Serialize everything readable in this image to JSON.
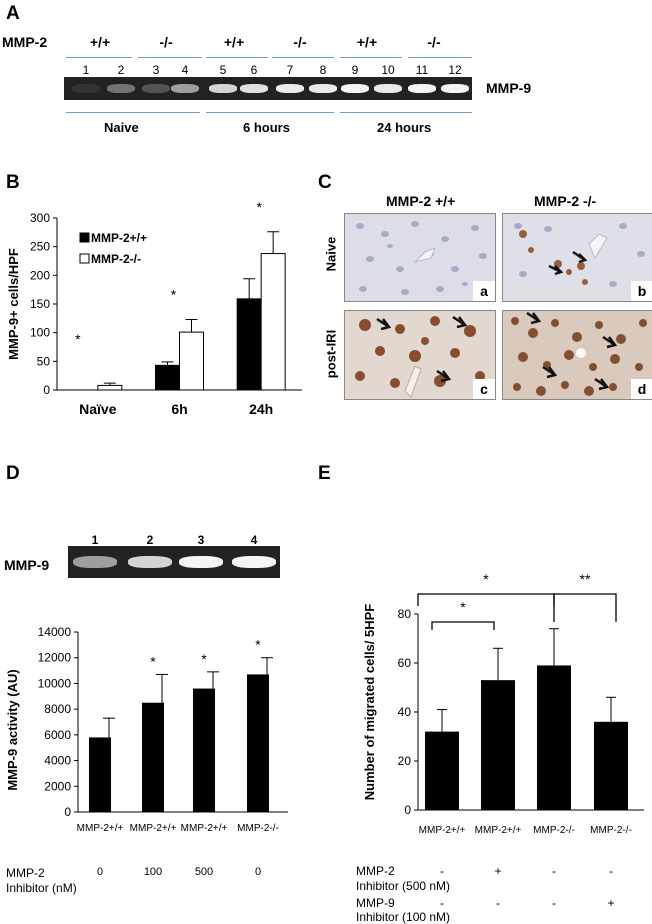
{
  "panel_a": {
    "label": "A",
    "row_label": "MMP-2",
    "genotypes": [
      "+/+",
      "-/-",
      "+/+",
      "-/-",
      "+/+",
      "-/-"
    ],
    "lanes": [
      "1",
      "2",
      "3",
      "4",
      "5",
      "6",
      "7",
      "8",
      "9",
      "10",
      "11",
      "12"
    ],
    "band_label": "MMP-9",
    "groups": [
      "Naive",
      "6 hours",
      "24 hours"
    ],
    "band_intensity": [
      0.05,
      0.35,
      0.2,
      0.55,
      0.8,
      0.85,
      0.9,
      0.9,
      0.95,
      0.9,
      0.95,
      0.95
    ]
  },
  "panel_c": {
    "label": "C",
    "columns": [
      "MMP-2 +/+",
      "MMP-2 -/-"
    ],
    "rows": [
      "Naive",
      "post-IRI"
    ],
    "tiles": [
      "a",
      "b",
      "c",
      "d"
    ]
  },
  "panel_d": {
    "label": "D",
    "gel_label": "MMP-9",
    "lanes": [
      "1",
      "2",
      "3",
      "4"
    ],
    "band_intensity": [
      0.55,
      0.8,
      0.95,
      0.95
    ],
    "row_label_line1": "MMP-2",
    "row_label_line2": "Inhibitor (nM)",
    "inhibitor_values": [
      "0",
      "100",
      "500",
      "0"
    ]
  },
  "panel_e": {
    "label": "E",
    "row1_line1": "MMP-2",
    "row1_line2": "Inhibitor (500 nM)",
    "row1_values": [
      "-",
      "+",
      "-",
      "-"
    ],
    "row2_line1": "MMP-9",
    "row2_line2": "Inhibitor (100 nM)",
    "row2_values": [
      "-",
      "-",
      "-",
      "+"
    ]
  },
  "chart_data": [
    {
      "id": "B",
      "label": "B",
      "type": "bar",
      "categories": [
        "Naïve",
        "6h",
        "24h"
      ],
      "series": [
        {
          "name": "MMP-2+/+",
          "values": [
            0,
            43,
            159
          ],
          "errors": [
            0,
            6,
            35
          ],
          "color": "#000000"
        },
        {
          "name": "MMP-2-/-",
          "values": [
            8,
            101,
            238
          ],
          "errors": [
            4,
            22,
            38
          ],
          "color": "#ffffff"
        }
      ],
      "ylabel": "MMP-9+ cells/HPF",
      "ylim": [
        0,
        300
      ],
      "yticks": [
        0,
        50,
        100,
        150,
        200,
        250,
        300
      ],
      "significance": [
        "*",
        "*",
        "*"
      ],
      "legend": "top-left",
      "grid": false
    },
    {
      "id": "D",
      "label": "D",
      "type": "bar",
      "categories": [
        "MMP-2+/+",
        "MMP-2+/+",
        "MMP-2+/+",
        "MMP-2-/-"
      ],
      "values": [
        5800,
        8500,
        9600,
        10700
      ],
      "errors": [
        1500,
        2200,
        1300,
        1300
      ],
      "significance": [
        "",
        "*",
        "*",
        "*"
      ],
      "ylabel": "MMP-9 activity (AU)",
      "ylim": [
        0,
        14000
      ],
      "yticks": [
        0,
        2000,
        4000,
        6000,
        8000,
        10000,
        12000,
        14000
      ],
      "grid": false
    },
    {
      "id": "E",
      "label": "E",
      "type": "bar",
      "categories": [
        "MMP-2+/+",
        "MMP-2+/+",
        "MMP-2-/-",
        "MMP-2-/-"
      ],
      "values": [
        32,
        53,
        59,
        36
      ],
      "errors": [
        9,
        13,
        15,
        10
      ],
      "ylabel": "Number of migrated cells/ 5HPF",
      "ylim": [
        0,
        80
      ],
      "yticks": [
        0,
        20,
        40,
        60,
        80
      ],
      "brackets": [
        {
          "from": 0,
          "to": 1,
          "label": "*"
        },
        {
          "from": 0,
          "to": 2,
          "label": "*"
        },
        {
          "from": 2,
          "to": 3,
          "label": "**"
        }
      ],
      "grid": false
    }
  ]
}
